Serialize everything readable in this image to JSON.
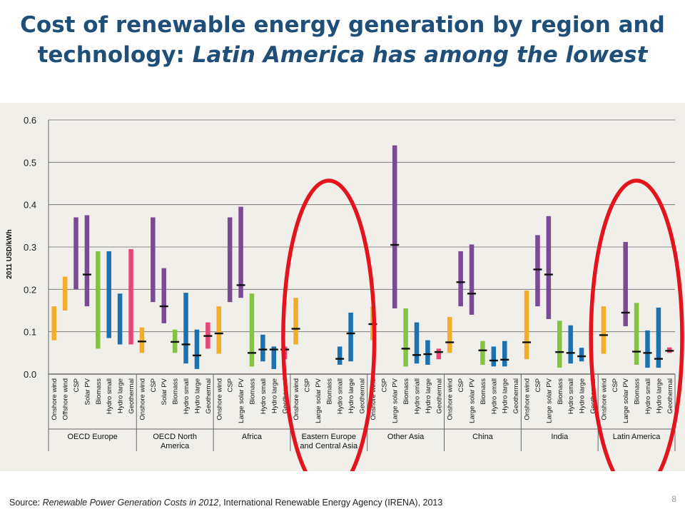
{
  "slide": {
    "title_line1": "Cost of renewable energy generation by region and",
    "title_line2_plain": "technology: ",
    "title_line2_italic": "Latin America has among the lowest",
    "source_prefix": "Source: ",
    "source_title": "Renewable Power Generation Costs in 2012",
    "source_suffix": ", International Renewable Energy Agency (IRENA), 2013",
    "page_number": "8"
  },
  "colors": {
    "wind": "#f4ac2b",
    "purple": "#7b4a94",
    "green": "#84c441",
    "blue": "#1c71b0",
    "pink": "#e8457a",
    "median": "#111111",
    "circle": "#e3141b"
  },
  "chart_data": {
    "type": "range-bar",
    "ylabel": "2011 USD/kWh",
    "ylim": [
      0,
      0.6
    ],
    "yticks": [
      "0.0",
      "0.1",
      "0.2",
      "0.3",
      "0.4",
      "0.5",
      "0.6"
    ],
    "grid": true,
    "highlighted_groups": [
      "Eastern Europe and Central Asia",
      "Latin America"
    ],
    "groups": [
      {
        "name": "OECD Europe",
        "bars": [
          {
            "tech": "Onshore wind",
            "color": "wind",
            "low": 0.08,
            "high": 0.16
          },
          {
            "tech": "Offshore wind",
            "color": "wind",
            "low": 0.15,
            "high": 0.23
          },
          {
            "tech": "CSP",
            "color": "purple",
            "low": 0.2,
            "high": 0.37
          },
          {
            "tech": "Solar PV",
            "color": "purple",
            "low": 0.16,
            "high": 0.375,
            "median": 0.235
          },
          {
            "tech": "Biomass",
            "color": "green",
            "low": 0.06,
            "high": 0.29
          },
          {
            "tech": "Hydro small",
            "color": "blue",
            "low": 0.085,
            "high": 0.29
          },
          {
            "tech": "Hydro large",
            "color": "blue",
            "low": 0.07,
            "high": 0.19
          },
          {
            "tech": "Geothermal",
            "color": "pink",
            "low": 0.07,
            "high": 0.295
          }
        ]
      },
      {
        "name": "OECD North America",
        "bars": [
          {
            "tech": "Onshore wind",
            "color": "wind",
            "low": 0.05,
            "high": 0.11,
            "median": 0.077
          },
          {
            "tech": "CSP",
            "color": "purple",
            "low": 0.17,
            "high": 0.37
          },
          {
            "tech": "Solar PV",
            "color": "purple",
            "low": 0.12,
            "high": 0.25,
            "median": 0.16
          },
          {
            "tech": "Biomass",
            "color": "green",
            "low": 0.05,
            "high": 0.105,
            "median": 0.076
          },
          {
            "tech": "Hydro small",
            "color": "blue",
            "low": 0.025,
            "high": 0.192,
            "median": 0.07
          },
          {
            "tech": "Hydro large",
            "color": "blue",
            "low": 0.012,
            "high": 0.105,
            "median": 0.044
          },
          {
            "tech": "Geothermal",
            "color": "pink",
            "low": 0.06,
            "high": 0.122,
            "median": 0.09
          }
        ]
      },
      {
        "name": "Africa",
        "bars": [
          {
            "tech": "Onshore wind",
            "color": "wind",
            "low": 0.048,
            "high": 0.16,
            "median": 0.096
          },
          {
            "tech": "CSP",
            "color": "purple",
            "low": 0.17,
            "high": 0.37
          },
          {
            "tech": "Large solar PV",
            "color": "purple",
            "low": 0.18,
            "high": 0.395,
            "median": 0.21
          },
          {
            "tech": "Biomass",
            "color": "green",
            "low": 0.018,
            "high": 0.19,
            "median": 0.05
          },
          {
            "tech": "Hydro small",
            "color": "blue",
            "low": 0.03,
            "high": 0.093,
            "median": 0.058
          },
          {
            "tech": "Hydro large",
            "color": "blue",
            "low": 0.012,
            "high": 0.065,
            "median": 0.058
          },
          {
            "tech": "Geothermal",
            "color": "pink",
            "low": 0.035,
            "high": 0.065,
            "median": 0.058
          }
        ]
      },
      {
        "name": "Eastern Europe and Central Asia",
        "bars": [
          {
            "tech": "Onshore wind",
            "color": "wind",
            "low": 0.07,
            "high": 0.18,
            "median": 0.107
          },
          {
            "tech": "CSP",
            "color": "purple"
          },
          {
            "tech": "Large solar PV",
            "color": "purple"
          },
          {
            "tech": "Biomass",
            "color": "green"
          },
          {
            "tech": "Hydro small",
            "color": "blue",
            "low": 0.022,
            "high": 0.065,
            "median": 0.036
          },
          {
            "tech": "Hydro large",
            "color": "blue",
            "low": 0.03,
            "high": 0.145,
            "median": 0.096
          },
          {
            "tech": "Geothermal",
            "color": "pink"
          }
        ]
      },
      {
        "name": "Other Asia",
        "bars": [
          {
            "tech": "Onshore wind",
            "color": "wind",
            "low": 0.08,
            "high": 0.16,
            "median": 0.118
          },
          {
            "tech": "CSP",
            "color": "purple"
          },
          {
            "tech": "Large solar PV",
            "color": "purple",
            "low": 0.155,
            "high": 0.54,
            "median": 0.305
          },
          {
            "tech": "Biomass",
            "color": "green",
            "low": 0.018,
            "high": 0.155,
            "median": 0.06
          },
          {
            "tech": "Hydro small",
            "color": "blue",
            "low": 0.025,
            "high": 0.122,
            "median": 0.045
          },
          {
            "tech": "Hydro large",
            "color": "blue",
            "low": 0.022,
            "high": 0.08,
            "median": 0.047
          },
          {
            "tech": "Geothermal",
            "color": "pink",
            "low": 0.035,
            "high": 0.06,
            "median": 0.052
          }
        ]
      },
      {
        "name": "China",
        "bars": [
          {
            "tech": "Onshore wind",
            "color": "wind",
            "low": 0.05,
            "high": 0.135,
            "median": 0.075
          },
          {
            "tech": "CSP",
            "color": "purple",
            "low": 0.16,
            "high": 0.29,
            "median": 0.217
          },
          {
            "tech": "Large solar PV",
            "color": "purple",
            "low": 0.14,
            "high": 0.306,
            "median": 0.19
          },
          {
            "tech": "Biomass",
            "color": "green",
            "low": 0.022,
            "high": 0.078,
            "median": 0.056
          },
          {
            "tech": "Hydro small",
            "color": "blue",
            "low": 0.018,
            "high": 0.065,
            "median": 0.032
          },
          {
            "tech": "Hydro large",
            "color": "blue",
            "low": 0.018,
            "high": 0.078,
            "median": 0.034
          },
          {
            "tech": "Geothermal",
            "color": "pink"
          }
        ]
      },
      {
        "name": "India",
        "bars": [
          {
            "tech": "Onshore wind",
            "color": "wind",
            "low": 0.035,
            "high": 0.197,
            "median": 0.075
          },
          {
            "tech": "CSP",
            "color": "purple",
            "low": 0.16,
            "high": 0.328,
            "median": 0.247
          },
          {
            "tech": "Large solar PV",
            "color": "purple",
            "low": 0.13,
            "high": 0.373,
            "median": 0.235
          },
          {
            "tech": "Biomass",
            "color": "green",
            "low": 0.015,
            "high": 0.126,
            "median": 0.052
          },
          {
            "tech": "Hydro small",
            "color": "blue",
            "low": 0.025,
            "high": 0.115,
            "median": 0.05
          },
          {
            "tech": "Hydro large",
            "color": "blue",
            "low": 0.03,
            "high": 0.062,
            "median": 0.042
          },
          {
            "tech": "Geothermal",
            "color": "pink"
          }
        ]
      },
      {
        "name": "Latin America",
        "bars": [
          {
            "tech": "Onshore wind",
            "color": "wind",
            "low": 0.048,
            "high": 0.16,
            "median": 0.092
          },
          {
            "tech": "CSP",
            "color": "purple"
          },
          {
            "tech": "Large solar PV",
            "color": "purple",
            "low": 0.113,
            "high": 0.312,
            "median": 0.145
          },
          {
            "tech": "Biomass",
            "color": "green",
            "low": 0.022,
            "high": 0.168,
            "median": 0.053
          },
          {
            "tech": "Hydro small",
            "color": "blue",
            "low": 0.015,
            "high": 0.103,
            "median": 0.05
          },
          {
            "tech": "Hydro large",
            "color": "blue",
            "low": 0.015,
            "high": 0.157,
            "median": 0.036
          },
          {
            "tech": "Geothermal",
            "color": "pink",
            "low": 0.05,
            "high": 0.063,
            "median": 0.055
          }
        ]
      }
    ]
  }
}
